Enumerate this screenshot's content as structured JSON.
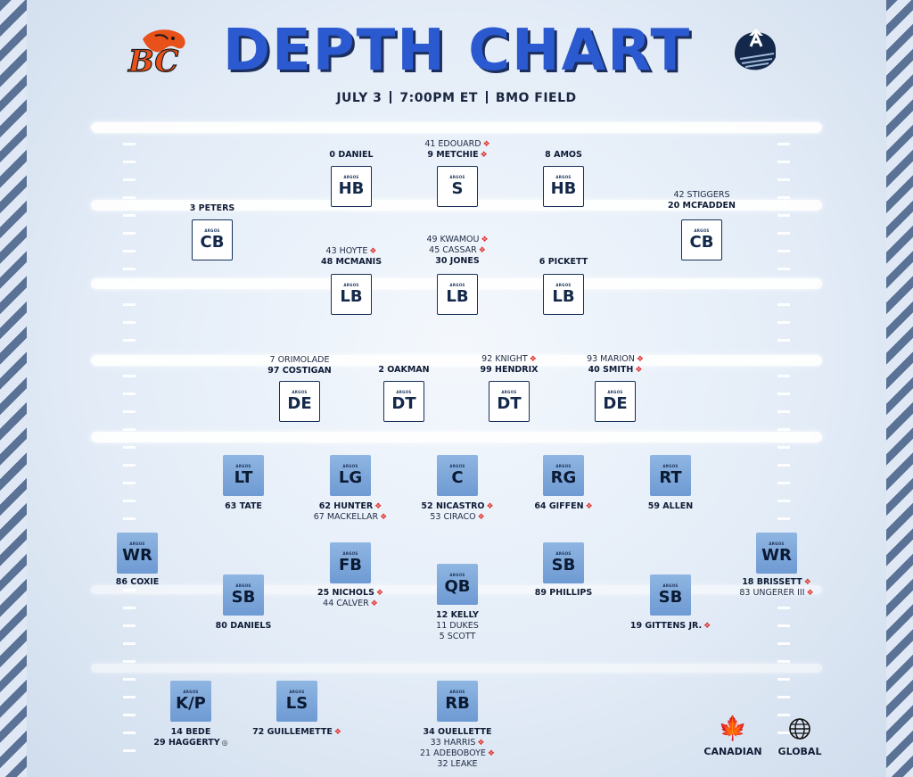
{
  "title": "DEPTH CHART",
  "subtitle": {
    "date": "JULY 3",
    "time": "7:00PM ET",
    "venue": "BMO FIELD"
  },
  "logos": {
    "home_text": "BC",
    "away_icon": "argonauts-helmet-icon"
  },
  "box_label": "ARGOS",
  "colors": {
    "title": "#2b5ad0",
    "canadian_leaf": "#e0302a",
    "offense_box": "#7ea8dc",
    "defense_box": "#ffffff"
  },
  "defense": [
    {
      "pos": "HB",
      "names": [
        {
          "text": "0 DANIEL",
          "canadian": false
        }
      ]
    },
    {
      "pos": "S",
      "names": [
        {
          "text": "41 EDOUARD",
          "canadian": true,
          "light": true
        },
        {
          "text": "9 METCHIE",
          "canadian": true
        }
      ]
    },
    {
      "pos": "HB",
      "names": [
        {
          "text": "8 AMOS",
          "canadian": false
        }
      ]
    },
    {
      "pos": "CB",
      "names": [
        {
          "text": "3 PETERS",
          "canadian": false
        }
      ]
    },
    {
      "pos": "CB",
      "names": [
        {
          "text": "42 STIGGERS",
          "canadian": false,
          "light": true
        },
        {
          "text": "20 MCFADDEN",
          "canadian": false
        }
      ]
    },
    {
      "pos": "LB",
      "names": [
        {
          "text": "43 HOYTE",
          "canadian": true,
          "light": true
        },
        {
          "text": "48 MCMANIS",
          "canadian": false
        }
      ]
    },
    {
      "pos": "LB",
      "names": [
        {
          "text": "49 KWAMOU",
          "canadian": true,
          "light": true
        },
        {
          "text": "45 CASSAR",
          "canadian": true,
          "light": true
        },
        {
          "text": "30 JONES",
          "canadian": false
        }
      ]
    },
    {
      "pos": "LB",
      "names": [
        {
          "text": "6 PICKETT",
          "canadian": false
        }
      ]
    },
    {
      "pos": "DE",
      "names": [
        {
          "text": "7 ORIMOLADE",
          "canadian": false,
          "light": true
        },
        {
          "text": "97 COSTIGAN",
          "canadian": false
        }
      ]
    },
    {
      "pos": "DT",
      "names": [
        {
          "text": "2 OAKMAN",
          "canadian": false
        }
      ]
    },
    {
      "pos": "DT",
      "names": [
        {
          "text": "92 KNIGHT",
          "canadian": true,
          "light": true
        },
        {
          "text": "99 HENDRIX",
          "canadian": false
        }
      ]
    },
    {
      "pos": "DE",
      "names": [
        {
          "text": "93 MARION",
          "canadian": true,
          "light": true
        },
        {
          "text": "40 SMITH",
          "canadian": true
        }
      ]
    }
  ],
  "offense": [
    {
      "pos": "LT",
      "names": [
        {
          "text": "63 TATE",
          "canadian": false
        }
      ]
    },
    {
      "pos": "LG",
      "names": [
        {
          "text": "62 HUNTER",
          "canadian": true
        },
        {
          "text": "67 MACKELLAR",
          "canadian": true,
          "light": true
        }
      ]
    },
    {
      "pos": "C",
      "names": [
        {
          "text": "52 NICASTRO",
          "canadian": true
        },
        {
          "text": "53 CIRACO",
          "canadian": true,
          "light": true
        }
      ]
    },
    {
      "pos": "RG",
      "names": [
        {
          "text": "64 GIFFEN",
          "canadian": true
        }
      ]
    },
    {
      "pos": "RT",
      "names": [
        {
          "text": "59 ALLEN",
          "canadian": false
        }
      ]
    },
    {
      "pos": "WR",
      "names": [
        {
          "text": "86 COXIE",
          "canadian": false
        }
      ]
    },
    {
      "pos": "SB",
      "names": [
        {
          "text": "80 DANIELS",
          "canadian": false
        }
      ]
    },
    {
      "pos": "FB",
      "names": [
        {
          "text": "25 NICHOLS",
          "canadian": true
        },
        {
          "text": "44 CALVER",
          "canadian": true,
          "light": true
        }
      ]
    },
    {
      "pos": "QB",
      "names": [
        {
          "text": "12 KELLY",
          "canadian": false
        },
        {
          "text": "11 DUKES",
          "canadian": false,
          "light": true
        },
        {
          "text": "5 SCOTT",
          "canadian": false,
          "light": true
        }
      ]
    },
    {
      "pos": "SB",
      "names": [
        {
          "text": "89 PHILLIPS",
          "canadian": false
        }
      ]
    },
    {
      "pos": "SB",
      "names": [
        {
          "text": "19 GITTENS JR.",
          "canadian": true
        }
      ]
    },
    {
      "pos": "WR",
      "names": [
        {
          "text": "18 BRISSETT",
          "canadian": true
        },
        {
          "text": "83 UNGERER III",
          "canadian": true,
          "light": true
        }
      ]
    }
  ],
  "special": [
    {
      "pos": "K/P",
      "names": [
        {
          "text": "14 BEDE",
          "canadian": false
        },
        {
          "text": "29 HAGGERTY",
          "canadian": false,
          "global": true
        }
      ]
    },
    {
      "pos": "LS",
      "names": [
        {
          "text": "72 GUILLEMETTE",
          "canadian": true
        }
      ]
    },
    {
      "pos": "RB",
      "names": [
        {
          "text": "34 OUELLETTE",
          "canadian": false
        },
        {
          "text": "33 HARRIS",
          "canadian": true,
          "light": true
        },
        {
          "text": "21 ADEBOBOYE",
          "canadian": true,
          "light": true
        },
        {
          "text": "32 LEAKE",
          "canadian": false,
          "light": true
        }
      ]
    }
  ],
  "legend": {
    "canadian": "CANADIAN",
    "global": "GLOBAL",
    "canadian_icon": "maple-leaf-icon",
    "global_icon": "globe-icon"
  }
}
